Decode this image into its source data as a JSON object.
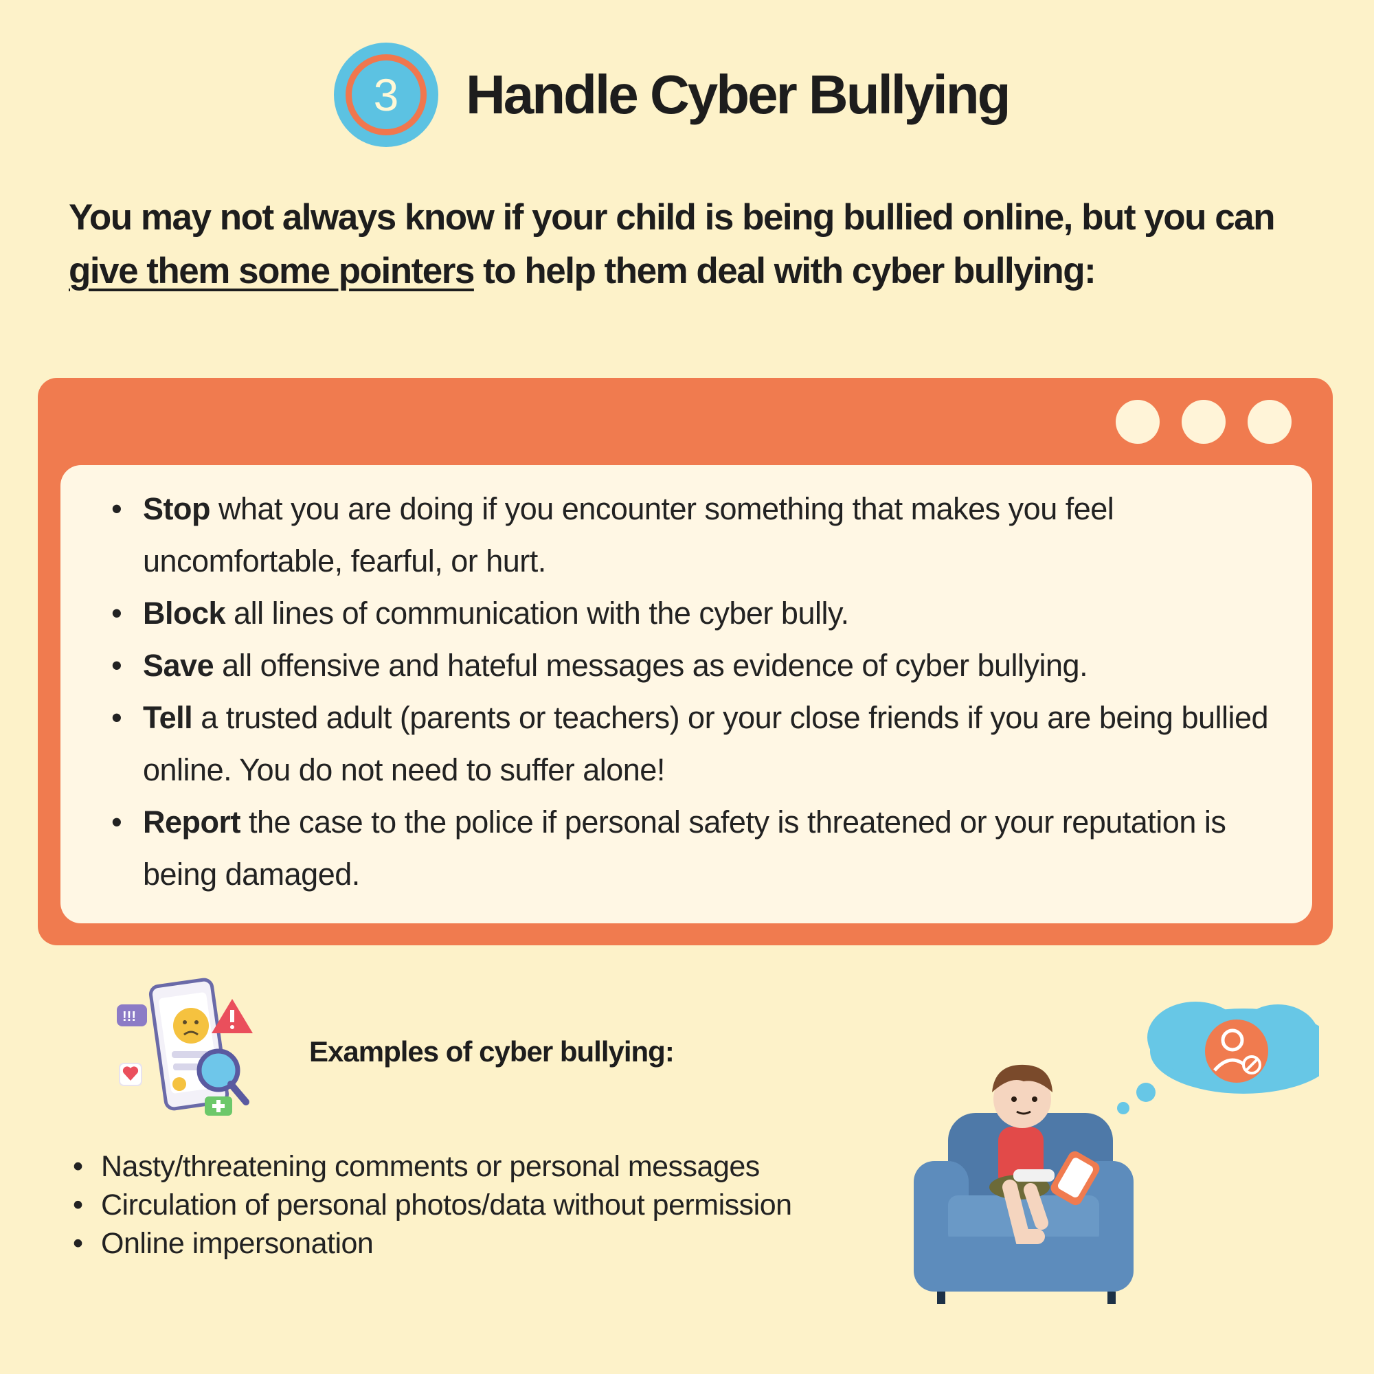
{
  "header": {
    "step_number": "3",
    "title": "Handle Cyber Bullying"
  },
  "intro": {
    "part1": "You may not always know if your child is being bullied online, but you can ",
    "underlined": "give them some pointers",
    "part2": " to help them deal with cyber bullying:"
  },
  "tips": [
    {
      "keyword": "Stop",
      "text": " what you are doing if you encounter something that makes you feel uncomfortable, fearful, or hurt."
    },
    {
      "keyword": "Block",
      "text": " all lines of communication with the cyber bully."
    },
    {
      "keyword": "Save",
      "text": " all offensive and hateful messages as evidence of cyber bullying."
    },
    {
      "keyword": "Tell",
      "text": " a trusted adult (parents or teachers) or your close friends if you are being bullied online. You do not need to suffer alone!"
    },
    {
      "keyword": "Report",
      "text": " the case to the police if personal safety is threatened or your reputation is being damaged."
    }
  ],
  "examples": {
    "title": "Examples of cyber bullying:",
    "items": [
      "Nasty/threatening comments or personal messages",
      "Circulation of personal photos/data without permission",
      "Online impersonation"
    ]
  },
  "colors": {
    "background": "#fdf2c9",
    "accent_orange": "#f07b4f",
    "accent_blue": "#5cc2e2",
    "panel": "#fff7e4"
  }
}
